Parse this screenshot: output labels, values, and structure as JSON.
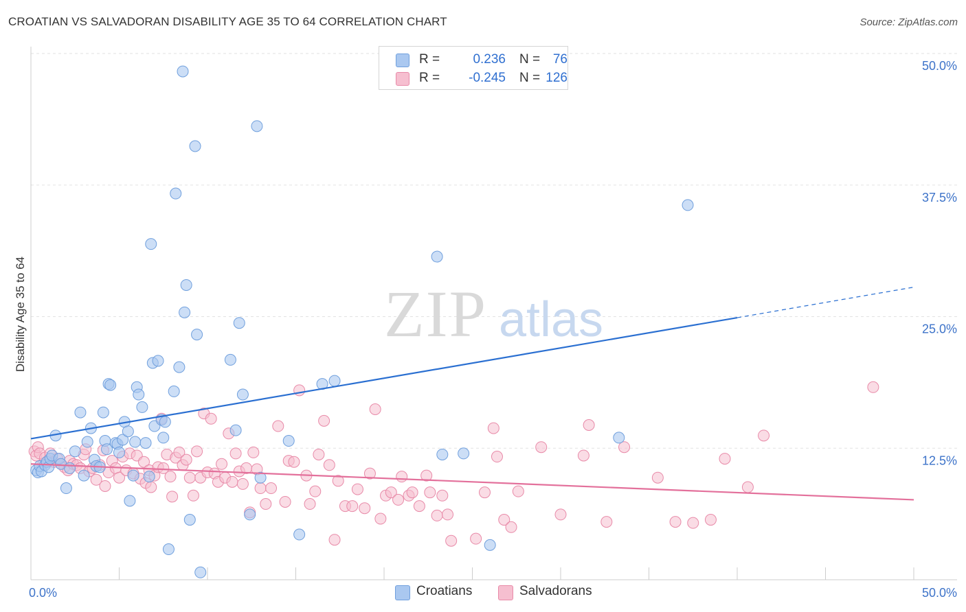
{
  "title": "CROATIAN VS SALVADORAN DISABILITY AGE 35 TO 64 CORRELATION CHART",
  "source": "Source: ZipAtlas.com",
  "watermark": {
    "zip": "ZIP",
    "atlas": "atlas"
  },
  "legend": {
    "r_label": "R =",
    "n_label": "N =",
    "croatians": {
      "r": "0.236",
      "n": "76"
    },
    "salvadorans": {
      "r": "-0.245",
      "n": "126"
    }
  },
  "bottom_legend": {
    "croatians": "Croatians",
    "salvadorans": "Salvadorans"
  },
  "colors": {
    "croatians_fill": "#aac8f0",
    "croatians_stroke": "#6f9fdd",
    "croatians_line": "#2a6fd1",
    "salvadorans_fill": "#f6bfd0",
    "salvadorans_stroke": "#e88aa8",
    "salvadorans_line": "#e3709b",
    "axis_label": "#3d73c9",
    "grid": "#e2e2e2"
  },
  "chart_data": {
    "type": "scatter",
    "title": "CROATIAN VS SALVADORAN DISABILITY AGE 35 TO 64 CORRELATION CHART",
    "xlabel": "",
    "ylabel": "Disability Age 35 to 64",
    "xlim": [
      0,
      50
    ],
    "ylim": [
      0,
      50
    ],
    "x_tick_labels": [
      "0.0%",
      "50.0%"
    ],
    "y_tick_labels": [
      "12.5%",
      "25.0%",
      "37.5%",
      "50.0%"
    ],
    "y_ticks": [
      12.5,
      25,
      37.5,
      50
    ],
    "series": [
      {
        "name": "Croatians",
        "r": 0.236,
        "n": 76,
        "trend": {
          "x0": 0,
          "y0": 13.4,
          "x1": 40,
          "y1": 24.9,
          "dashed_to_x": 50,
          "dashed_to_y": 27.8
        },
        "points": [
          [
            0.3,
            10.4
          ],
          [
            0.4,
            10.2
          ],
          [
            0.5,
            10.8
          ],
          [
            0.6,
            10.3
          ],
          [
            0.8,
            10.9
          ],
          [
            0.9,
            11.2
          ],
          [
            1.0,
            10.7
          ],
          [
            1.1,
            11.5
          ],
          [
            1.2,
            11.8
          ],
          [
            1.4,
            13.7
          ],
          [
            1.6,
            11.5
          ],
          [
            1.7,
            11.0
          ],
          [
            2.0,
            8.7
          ],
          [
            2.2,
            10.6
          ],
          [
            2.5,
            12.2
          ],
          [
            2.8,
            15.9
          ],
          [
            3.0,
            9.9
          ],
          [
            3.2,
            13.1
          ],
          [
            3.4,
            14.4
          ],
          [
            3.6,
            11.4
          ],
          [
            3.7,
            10.8
          ],
          [
            3.9,
            10.7
          ],
          [
            4.1,
            15.9
          ],
          [
            4.2,
            13.2
          ],
          [
            4.3,
            12.4
          ],
          [
            4.4,
            18.6
          ],
          [
            4.5,
            18.5
          ],
          [
            4.8,
            13.0
          ],
          [
            4.9,
            12.9
          ],
          [
            5.0,
            12.1
          ],
          [
            5.2,
            13.3
          ],
          [
            5.3,
            15.0
          ],
          [
            5.5,
            14.1
          ],
          [
            5.6,
            7.5
          ],
          [
            5.8,
            9.9
          ],
          [
            5.9,
            13.1
          ],
          [
            6.0,
            18.3
          ],
          [
            6.1,
            17.6
          ],
          [
            6.3,
            16.4
          ],
          [
            6.5,
            13.0
          ],
          [
            6.7,
            9.8
          ],
          [
            6.8,
            31.9
          ],
          [
            6.9,
            20.6
          ],
          [
            7.0,
            14.6
          ],
          [
            7.2,
            20.8
          ],
          [
            7.4,
            15.2
          ],
          [
            7.5,
            13.5
          ],
          [
            7.6,
            15.0
          ],
          [
            7.8,
            2.9
          ],
          [
            8.1,
            17.9
          ],
          [
            8.2,
            36.7
          ],
          [
            8.4,
            20.2
          ],
          [
            8.6,
            48.3
          ],
          [
            8.7,
            25.4
          ],
          [
            8.8,
            28.0
          ],
          [
            9.0,
            5.7
          ],
          [
            9.3,
            41.2
          ],
          [
            9.4,
            23.3
          ],
          [
            9.6,
            0.7
          ],
          [
            11.3,
            20.9
          ],
          [
            11.6,
            14.2
          ],
          [
            11.8,
            24.4
          ],
          [
            12.0,
            17.6
          ],
          [
            12.4,
            6.2
          ],
          [
            12.8,
            43.1
          ],
          [
            13.0,
            9.7
          ],
          [
            14.6,
            13.2
          ],
          [
            15.2,
            4.3
          ],
          [
            16.5,
            18.6
          ],
          [
            17.2,
            18.9
          ],
          [
            23.0,
            30.7
          ],
          [
            23.3,
            11.9
          ],
          [
            24.5,
            12.0
          ],
          [
            26.0,
            3.3
          ],
          [
            33.3,
            13.5
          ],
          [
            37.2,
            35.6
          ]
        ]
      },
      {
        "name": "Salvadorans",
        "r": -0.245,
        "n": 126,
        "trend": {
          "x0": 0,
          "y0": 11.0,
          "x1": 50,
          "y1": 7.6
        },
        "points": [
          [
            0.2,
            12.2
          ],
          [
            0.3,
            11.8
          ],
          [
            0.4,
            12.6
          ],
          [
            0.5,
            12.0
          ],
          [
            0.7,
            11.0
          ],
          [
            0.8,
            11.6
          ],
          [
            1.0,
            11.3
          ],
          [
            1.1,
            12.0
          ],
          [
            1.3,
            11.2
          ],
          [
            1.5,
            11.5
          ],
          [
            1.7,
            11.0
          ],
          [
            1.9,
            10.7
          ],
          [
            2.1,
            10.4
          ],
          [
            2.2,
            11.3
          ],
          [
            2.4,
            11.0
          ],
          [
            2.6,
            10.9
          ],
          [
            2.8,
            10.6
          ],
          [
            3.0,
            11.9
          ],
          [
            3.1,
            12.4
          ],
          [
            3.3,
            10.3
          ],
          [
            3.5,
            10.6
          ],
          [
            3.7,
            9.5
          ],
          [
            3.9,
            10.9
          ],
          [
            4.1,
            12.3
          ],
          [
            4.2,
            8.9
          ],
          [
            4.4,
            10.2
          ],
          [
            4.6,
            11.3
          ],
          [
            4.8,
            10.6
          ],
          [
            5.0,
            9.7
          ],
          [
            5.2,
            11.7
          ],
          [
            5.4,
            10.4
          ],
          [
            5.6,
            12.0
          ],
          [
            5.8,
            10.1
          ],
          [
            6.0,
            11.8
          ],
          [
            6.2,
            9.6
          ],
          [
            6.4,
            11.2
          ],
          [
            6.5,
            9.2
          ],
          [
            6.7,
            10.4
          ],
          [
            6.8,
            8.8
          ],
          [
            7.0,
            9.9
          ],
          [
            7.2,
            10.7
          ],
          [
            7.4,
            15.3
          ],
          [
            7.5,
            10.6
          ],
          [
            7.7,
            11.9
          ],
          [
            7.9,
            9.8
          ],
          [
            8.0,
            7.9
          ],
          [
            8.2,
            11.6
          ],
          [
            8.4,
            12.1
          ],
          [
            8.6,
            10.9
          ],
          [
            8.8,
            11.4
          ],
          [
            9.0,
            9.7
          ],
          [
            9.2,
            8.0
          ],
          [
            9.4,
            12.2
          ],
          [
            9.6,
            9.7
          ],
          [
            9.8,
            15.8
          ],
          [
            10.0,
            10.2
          ],
          [
            10.2,
            15.3
          ],
          [
            10.4,
            10.1
          ],
          [
            10.6,
            9.3
          ],
          [
            10.8,
            11.0
          ],
          [
            11.0,
            9.7
          ],
          [
            11.2,
            13.9
          ],
          [
            11.4,
            9.3
          ],
          [
            11.6,
            12.0
          ],
          [
            11.8,
            10.3
          ],
          [
            12.0,
            9.1
          ],
          [
            12.2,
            10.6
          ],
          [
            12.4,
            6.4
          ],
          [
            12.6,
            12.1
          ],
          [
            12.8,
            10.5
          ],
          [
            13.0,
            8.7
          ],
          [
            13.3,
            7.2
          ],
          [
            13.6,
            8.7
          ],
          [
            14.0,
            14.6
          ],
          [
            14.4,
            7.4
          ],
          [
            14.6,
            11.3
          ],
          [
            14.9,
            11.2
          ],
          [
            15.2,
            18.0
          ],
          [
            15.6,
            9.9
          ],
          [
            15.8,
            7.2
          ],
          [
            16.1,
            8.4
          ],
          [
            16.3,
            11.9
          ],
          [
            16.6,
            15.1
          ],
          [
            16.9,
            10.9
          ],
          [
            17.2,
            3.8
          ],
          [
            17.4,
            9.4
          ],
          [
            17.8,
            7.0
          ],
          [
            18.2,
            7.0
          ],
          [
            18.5,
            8.6
          ],
          [
            18.9,
            6.8
          ],
          [
            19.2,
            10.1
          ],
          [
            19.5,
            16.2
          ],
          [
            19.8,
            5.8
          ],
          [
            20.1,
            8.0
          ],
          [
            20.4,
            8.3
          ],
          [
            20.8,
            7.6
          ],
          [
            21.0,
            9.8
          ],
          [
            21.4,
            8.0
          ],
          [
            21.6,
            8.3
          ],
          [
            22.0,
            7.0
          ],
          [
            22.4,
            9.9
          ],
          [
            22.6,
            8.3
          ],
          [
            23.0,
            6.1
          ],
          [
            23.3,
            8.0
          ],
          [
            23.6,
            6.2
          ],
          [
            23.8,
            3.7
          ],
          [
            25.2,
            3.9
          ],
          [
            25.7,
            8.3
          ],
          [
            26.2,
            14.4
          ],
          [
            26.4,
            11.7
          ],
          [
            26.8,
            5.7
          ],
          [
            27.2,
            5.0
          ],
          [
            27.6,
            8.4
          ],
          [
            28.9,
            12.6
          ],
          [
            30.0,
            6.2
          ],
          [
            31.3,
            11.8
          ],
          [
            31.6,
            14.7
          ],
          [
            32.6,
            5.5
          ],
          [
            33.6,
            12.6
          ],
          [
            35.5,
            9.7
          ],
          [
            36.5,
            5.5
          ],
          [
            37.5,
            5.4
          ],
          [
            38.5,
            5.7
          ],
          [
            39.3,
            11.5
          ],
          [
            40.6,
            8.8
          ],
          [
            41.5,
            13.7
          ],
          [
            47.7,
            18.3
          ]
        ]
      }
    ]
  }
}
